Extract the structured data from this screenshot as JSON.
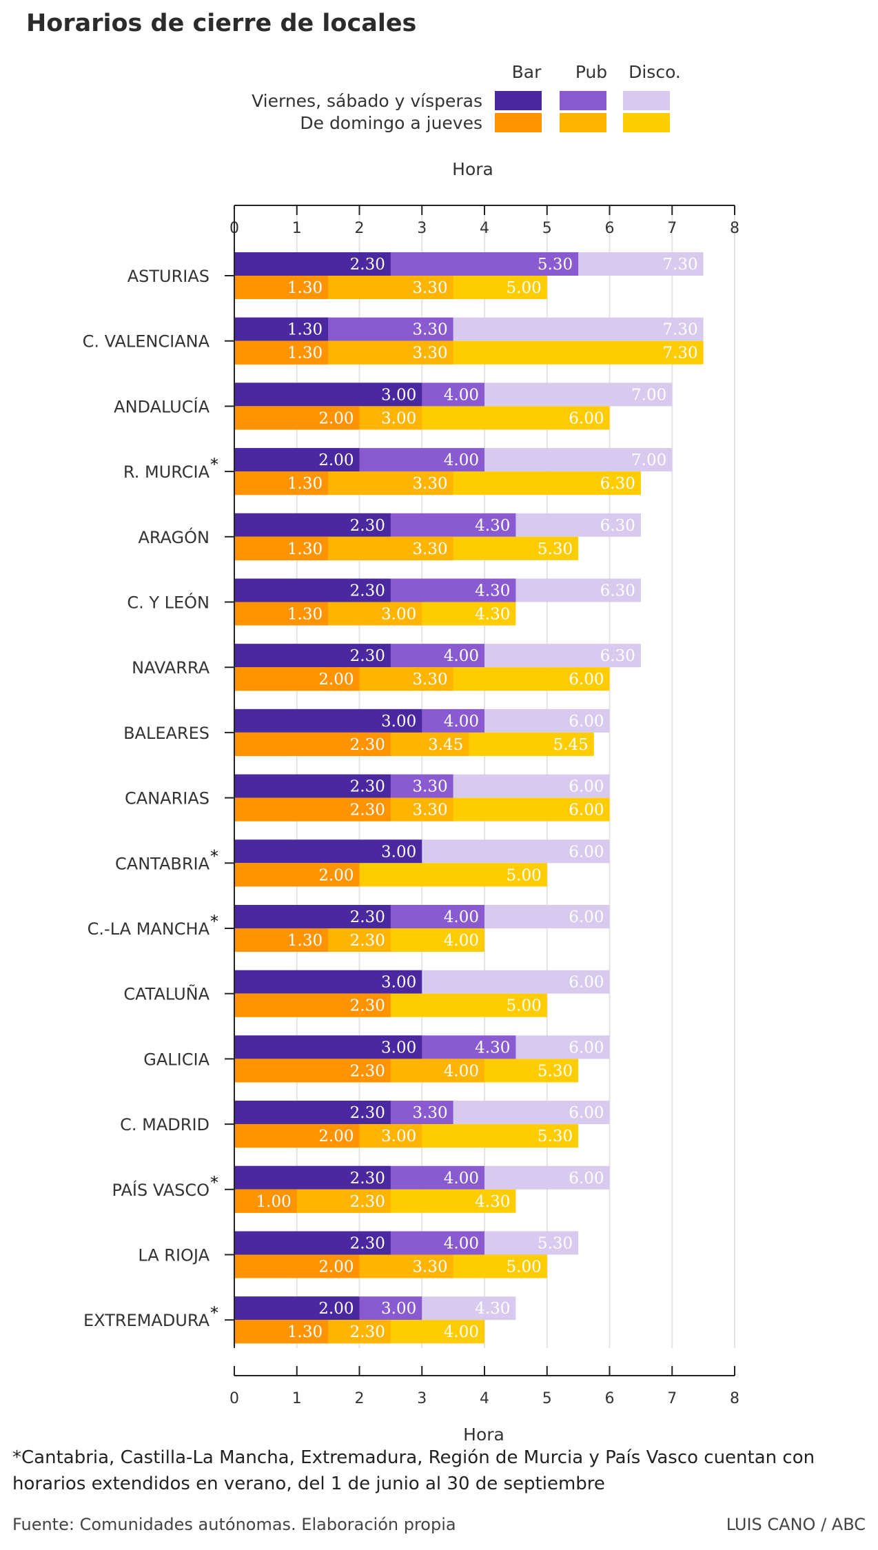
{
  "title": "Horarios de cierre de locales",
  "colors": {
    "weekend": [
      "#4a28a0",
      "#8a5bd0",
      "#d8caee"
    ],
    "weekday": [
      "#ff9300",
      "#ffb400",
      "#ffcc00"
    ],
    "grid": "#e3e3e3",
    "axis": "#222222"
  },
  "chart_data": {
    "type": "bar",
    "orientation": "horizontal",
    "layout": "overlapping cumulative closing times (bar < pub < disco), two groups per region",
    "title": "Horarios de cierre de locales",
    "xlabel": "Hora",
    "ylabel": "",
    "xlim": [
      0,
      8
    ],
    "xticks": [
      "0",
      "1",
      "2",
      "3",
      "4",
      "5",
      "6",
      "7",
      "8"
    ],
    "grid": true,
    "legend": {
      "position": "top",
      "columns": [
        "Bar",
        "Pub",
        "Disco."
      ],
      "rows": [
        "Viernes, sábado y vísperas",
        "De domingo a jueves"
      ]
    },
    "categories": [
      "ASTURIAS",
      "C. VALENCIANA",
      "ANDALUCÍA",
      "R. MURCIA",
      "ARAGÓN",
      "C. Y LEÓN",
      "NAVARRA",
      "BALEARES",
      "CANARIAS",
      "CANTABRIA",
      "C.-LA MANCHA",
      "CATALUÑA",
      "GALICIA",
      "C. MADRID",
      "PAÍS VASCO",
      "LA RIOJA",
      "EXTREMADURA"
    ],
    "asterisk": [
      false,
      false,
      false,
      true,
      false,
      false,
      false,
      false,
      false,
      true,
      true,
      false,
      false,
      false,
      true,
      false,
      true
    ],
    "asterisk_mark": "*",
    "series": [
      {
        "name": "Viernes, sábado y vísperas",
        "rows": [
          [
            {
              "value": 2.5,
              "label": "2.30"
            },
            {
              "value": 5.5,
              "label": "5.30"
            },
            {
              "value": 7.5,
              "label": "7.30"
            }
          ],
          [
            {
              "value": 1.5,
              "label": "1.30"
            },
            {
              "value": 3.5,
              "label": "3.30"
            },
            {
              "value": 7.5,
              "label": "7.30"
            }
          ],
          [
            {
              "value": 3.0,
              "label": "3.00"
            },
            {
              "value": 4.0,
              "label": "4.00"
            },
            {
              "value": 7.0,
              "label": "7.00"
            }
          ],
          [
            {
              "value": 2.0,
              "label": "2.00"
            },
            {
              "value": 4.0,
              "label": "4.00"
            },
            {
              "value": 7.0,
              "label": "7.00"
            }
          ],
          [
            {
              "value": 2.5,
              "label": "2.30"
            },
            {
              "value": 4.5,
              "label": "4.30"
            },
            {
              "value": 6.5,
              "label": "6.30"
            }
          ],
          [
            {
              "value": 2.5,
              "label": "2.30"
            },
            {
              "value": 4.5,
              "label": "4.30"
            },
            {
              "value": 6.5,
              "label": "6.30"
            }
          ],
          [
            {
              "value": 2.5,
              "label": "2.30"
            },
            {
              "value": 4.0,
              "label": "4.00"
            },
            {
              "value": 6.5,
              "label": "6.30"
            }
          ],
          [
            {
              "value": 3.0,
              "label": "3.00"
            },
            {
              "value": 4.0,
              "label": "4.00"
            },
            {
              "value": 6.0,
              "label": "6.00"
            }
          ],
          [
            {
              "value": 2.5,
              "label": "2.30"
            },
            {
              "value": 3.5,
              "label": "3.30"
            },
            {
              "value": 6.0,
              "label": "6.00"
            }
          ],
          [
            {
              "value": 3.0,
              "label": "3.00"
            },
            null,
            {
              "value": 6.0,
              "label": "6.00"
            }
          ],
          [
            {
              "value": 2.5,
              "label": "2.30"
            },
            {
              "value": 4.0,
              "label": "4.00"
            },
            {
              "value": 6.0,
              "label": "6.00"
            }
          ],
          [
            {
              "value": 3.0,
              "label": "3.00"
            },
            null,
            {
              "value": 6.0,
              "label": "6.00"
            }
          ],
          [
            {
              "value": 3.0,
              "label": "3.00"
            },
            {
              "value": 4.5,
              "label": "4.30"
            },
            {
              "value": 6.0,
              "label": "6.00"
            }
          ],
          [
            {
              "value": 2.5,
              "label": "2.30"
            },
            {
              "value": 3.5,
              "label": "3.30"
            },
            {
              "value": 6.0,
              "label": "6.00"
            }
          ],
          [
            {
              "value": 2.5,
              "label": "2.30"
            },
            {
              "value": 4.0,
              "label": "4.00"
            },
            {
              "value": 6.0,
              "label": "6.00"
            }
          ],
          [
            {
              "value": 2.5,
              "label": "2.30"
            },
            {
              "value": 4.0,
              "label": "4.00"
            },
            {
              "value": 5.5,
              "label": "5.30"
            }
          ],
          [
            {
              "value": 2.0,
              "label": "2.00"
            },
            {
              "value": 3.0,
              "label": "3.00"
            },
            {
              "value": 4.5,
              "label": "4.30"
            }
          ]
        ]
      },
      {
        "name": "De domingo a jueves",
        "rows": [
          [
            {
              "value": 1.5,
              "label": "1.30"
            },
            {
              "value": 3.5,
              "label": "3.30"
            },
            {
              "value": 5.0,
              "label": "5.00"
            }
          ],
          [
            {
              "value": 1.5,
              "label": "1.30"
            },
            {
              "value": 3.5,
              "label": "3.30"
            },
            {
              "value": 7.5,
              "label": "7.30"
            }
          ],
          [
            {
              "value": 2.0,
              "label": "2.00"
            },
            {
              "value": 3.0,
              "label": "3.00"
            },
            {
              "value": 6.0,
              "label": "6.00"
            }
          ],
          [
            {
              "value": 1.5,
              "label": "1.30"
            },
            {
              "value": 3.5,
              "label": "3.30"
            },
            {
              "value": 6.5,
              "label": "6.30"
            }
          ],
          [
            {
              "value": 1.5,
              "label": "1.30"
            },
            {
              "value": 3.5,
              "label": "3.30"
            },
            {
              "value": 5.5,
              "label": "5.30"
            }
          ],
          [
            {
              "value": 1.5,
              "label": "1.30"
            },
            {
              "value": 3.0,
              "label": "3.00"
            },
            {
              "value": 4.5,
              "label": "4.30"
            }
          ],
          [
            {
              "value": 2.0,
              "label": "2.00"
            },
            {
              "value": 3.5,
              "label": "3.30"
            },
            {
              "value": 6.0,
              "label": "6.00"
            }
          ],
          [
            {
              "value": 2.5,
              "label": "2.30"
            },
            {
              "value": 3.75,
              "label": "3.45"
            },
            {
              "value": 5.75,
              "label": "5.45"
            }
          ],
          [
            {
              "value": 2.5,
              "label": "2.30"
            },
            {
              "value": 3.5,
              "label": "3.30"
            },
            {
              "value": 6.0,
              "label": "6.00"
            }
          ],
          [
            {
              "value": 2.0,
              "label": "2.00"
            },
            null,
            {
              "value": 5.0,
              "label": "5.00"
            }
          ],
          [
            {
              "value": 1.5,
              "label": "1.30"
            },
            {
              "value": 2.5,
              "label": "2.30"
            },
            {
              "value": 4.0,
              "label": "4.00"
            }
          ],
          [
            {
              "value": 2.5,
              "label": "2.30"
            },
            null,
            {
              "value": 5.0,
              "label": "5.00"
            }
          ],
          [
            {
              "value": 2.5,
              "label": "2.30"
            },
            {
              "value": 4.0,
              "label": "4.00"
            },
            {
              "value": 5.5,
              "label": "5.30"
            }
          ],
          [
            {
              "value": 2.0,
              "label": "2.00"
            },
            {
              "value": 3.0,
              "label": "3.00"
            },
            {
              "value": 5.5,
              "label": "5.30"
            }
          ],
          [
            {
              "value": 1.0,
              "label": "1.00"
            },
            {
              "value": 2.5,
              "label": "2.30"
            },
            {
              "value": 4.5,
              "label": "4.30"
            }
          ],
          [
            {
              "value": 2.0,
              "label": "2.00"
            },
            {
              "value": 3.5,
              "label": "3.30"
            },
            {
              "value": 5.0,
              "label": "5.00"
            }
          ],
          [
            {
              "value": 1.5,
              "label": "1.30"
            },
            {
              "value": 2.5,
              "label": "2.30"
            },
            {
              "value": 4.0,
              "label": "4.00"
            }
          ]
        ]
      }
    ]
  },
  "footnote": "*Cantabria, Castilla-La Mancha, Extremadura, Región de Murcia y País Vasco cuentan con horarios extendidos en verano, del 1 de junio al 30 de septiembre",
  "source": "Fuente: Comunidades autónomas. Elaboración propia",
  "credit": "LUIS CANO / ABC"
}
